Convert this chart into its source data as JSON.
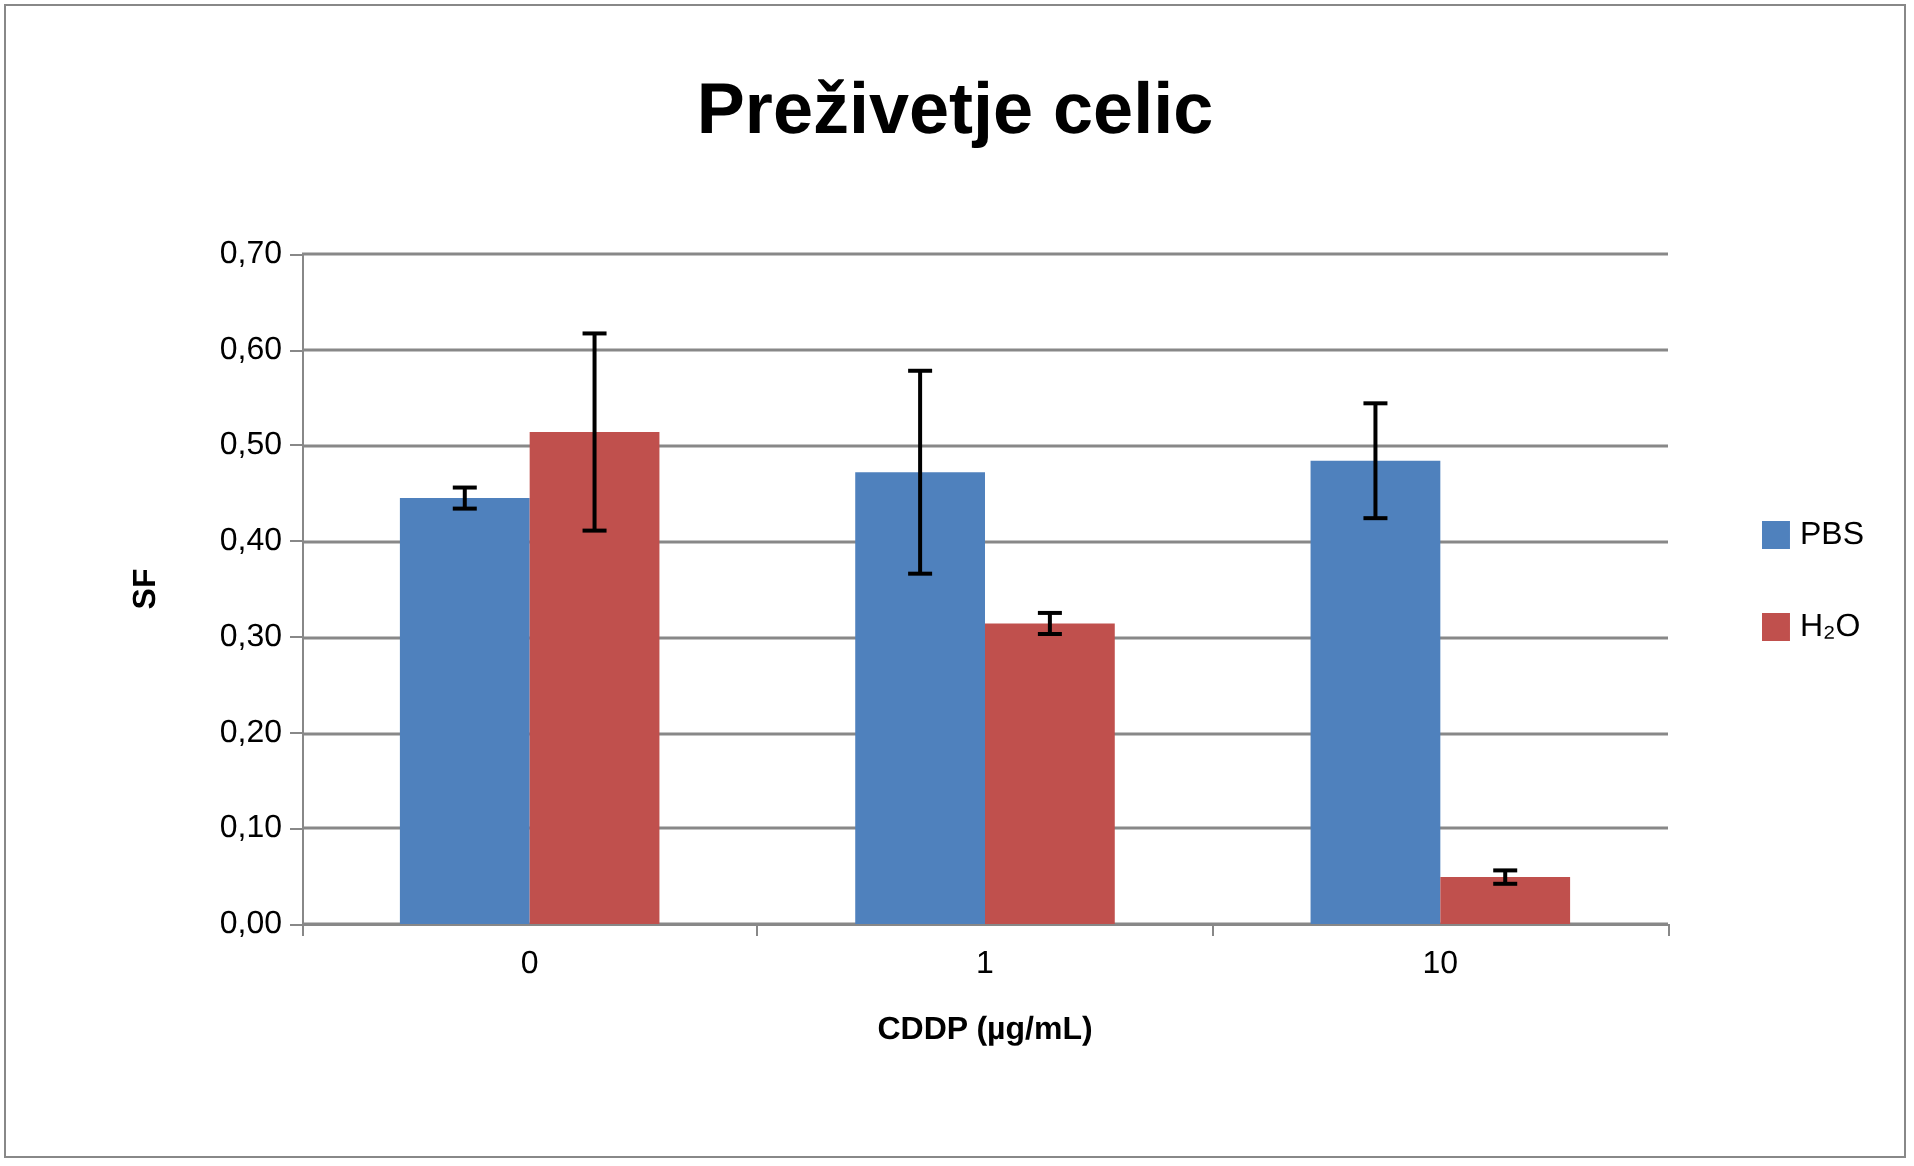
{
  "chart_data": {
    "type": "bar",
    "title": "Preživetje celic",
    "xlabel": "CDDP (µg/mL)",
    "ylabel": "SF",
    "categories": [
      "0",
      "1",
      "10"
    ],
    "series": [
      {
        "name": "PBS",
        "color": "#4f81bd",
        "values": [
          0.445,
          0.472,
          0.484
        ],
        "errors": [
          0.011,
          0.106,
          0.06
        ]
      },
      {
        "name": "H₂O",
        "color": "#c0504d",
        "values": [
          0.514,
          0.314,
          0.049
        ],
        "errors": [
          0.103,
          0.011,
          0.007
        ]
      }
    ],
    "ylim": [
      0,
      0.7
    ],
    "yticks": [
      {
        "value": 0,
        "label": "0,00"
      },
      {
        "value": 0.1,
        "label": "0,10"
      },
      {
        "value": 0.2,
        "label": "0,20"
      },
      {
        "value": 0.3,
        "label": "0,30"
      },
      {
        "value": 0.4,
        "label": "0,40"
      },
      {
        "value": 0.5,
        "label": "0,50"
      },
      {
        "value": 0.6,
        "label": "0,60"
      },
      {
        "value": 0.7,
        "label": "0,70"
      }
    ],
    "grid": "y",
    "legend": "right"
  }
}
